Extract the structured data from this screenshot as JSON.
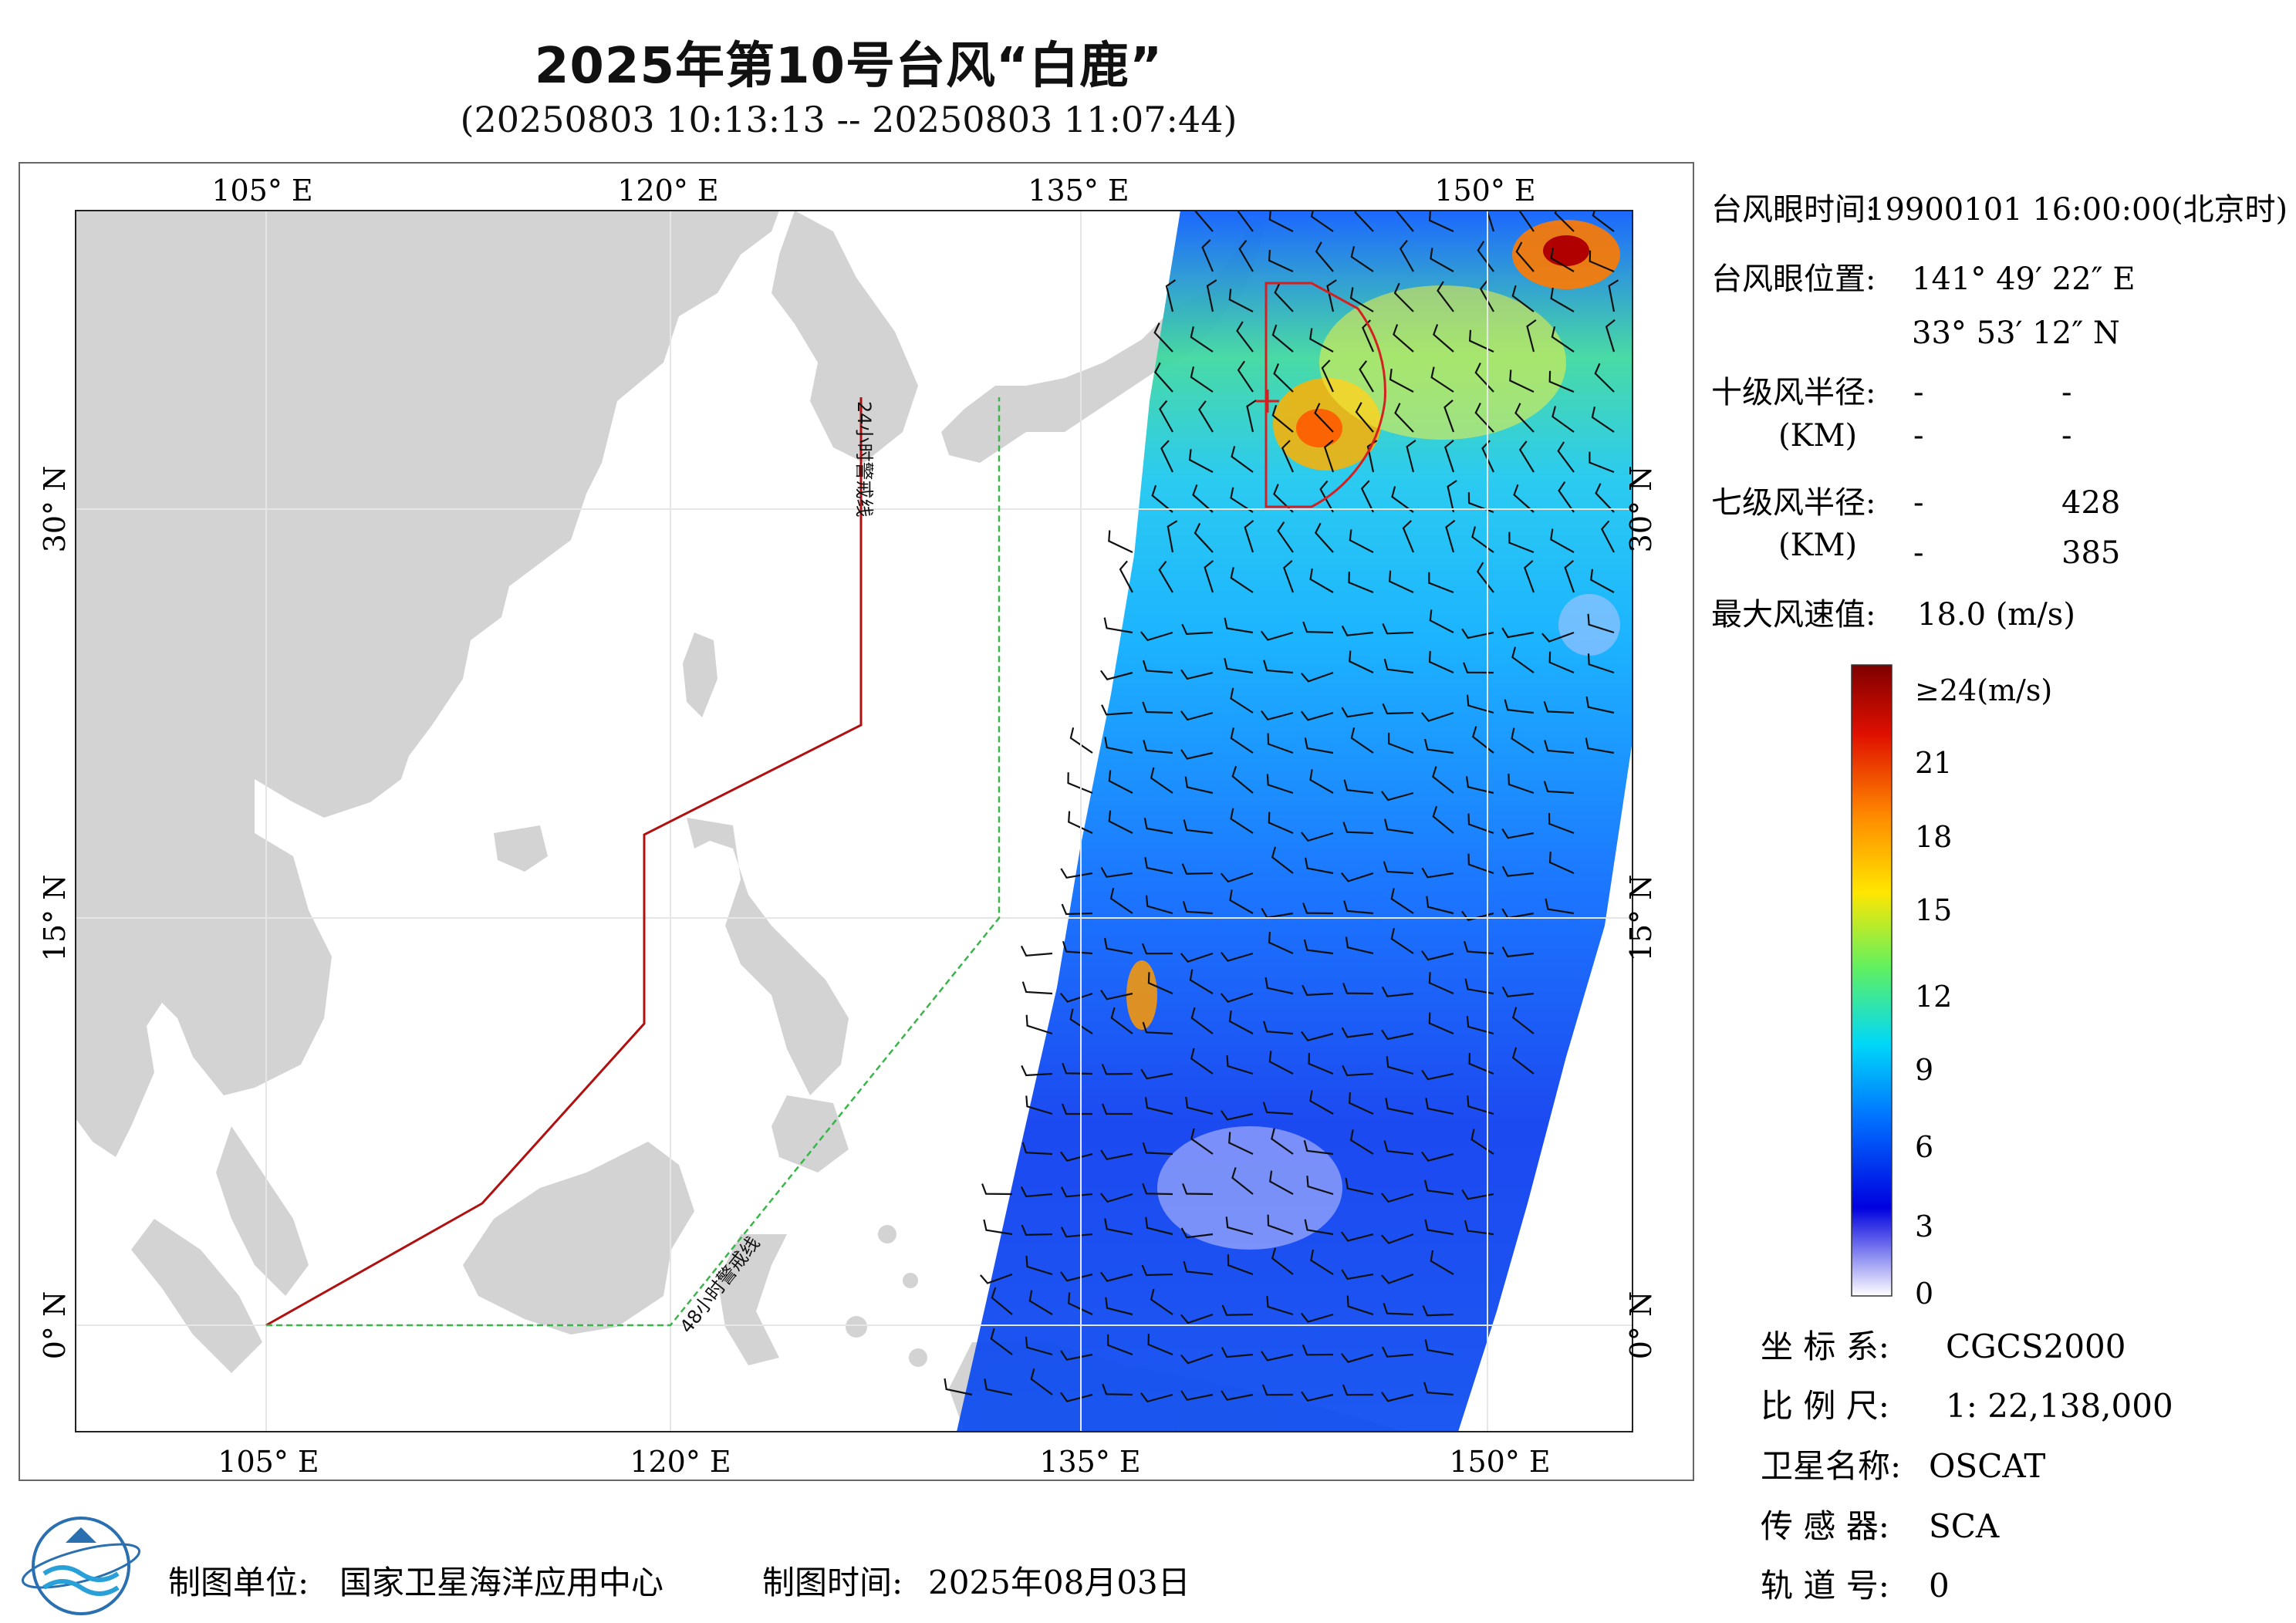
{
  "header": {
    "title": "2025年第10号台风“白鹿”",
    "subtitle": "(20250803 10:13:13 -- 20250803 11:07:44)"
  },
  "map": {
    "lon_labels": [
      "105° E",
      "120° E",
      "135° E",
      "150° E"
    ],
    "lat_labels": [
      "30° N",
      "15° N",
      "0° N"
    ],
    "warning_line_24h": "24小时警戒线",
    "warning_line_48h": "48小时警戒线",
    "colors": {
      "land": "#d3d3d3",
      "ocean": "#ffffff",
      "line_24h": "#b01010",
      "line_48h": "#39b54a",
      "sector": "#d42020"
    }
  },
  "info": {
    "eye_time_label": "台风眼时间:",
    "eye_time_value": "19900101 16:00:00(北京时)",
    "eye_pos_label": "台风眼位置:",
    "eye_lon": "141° 49′ 22″ E",
    "eye_lat": "33° 53′ 12″ N",
    "r10_label": "十级风半径:",
    "r10_unit": "(KM)",
    "r10_values": [
      "-",
      "-",
      "-",
      "-"
    ],
    "r7_label": "七级风半径:",
    "r7_unit": "(KM)",
    "r7_values": [
      "-",
      "428",
      "-",
      "385"
    ],
    "max_wind_label": "最大风速值:",
    "max_wind_value": "18.0 (m/s)"
  },
  "legend": {
    "ticks": [
      "≥24(m/s)",
      "21",
      "18",
      "15",
      "12",
      "9",
      "6",
      "3",
      "0"
    ],
    "colors": [
      "#7f0000",
      "#ff1a00",
      "#ff8c00",
      "#ffee00",
      "#7fff00",
      "#00e5ff",
      "#0080ff",
      "#0000e0",
      "#ffffff"
    ]
  },
  "meta": {
    "crs_label": "坐 标 系:",
    "crs_value": "CGCS2000",
    "scale_label": "比 例 尺:",
    "scale_value": "1: 22,138,000",
    "satellite_label": "卫星名称:",
    "satellite_value": "OSCAT",
    "sensor_label": "传 感 器:",
    "sensor_value": "SCA",
    "orbit_label": "轨 道 号:",
    "orbit_value": "0"
  },
  "footer": {
    "producer_label": "制图单位:",
    "producer_value": "国家卫星海洋应用中心",
    "date_label": "制图时间:",
    "date_value": "2025年08月03日"
  }
}
